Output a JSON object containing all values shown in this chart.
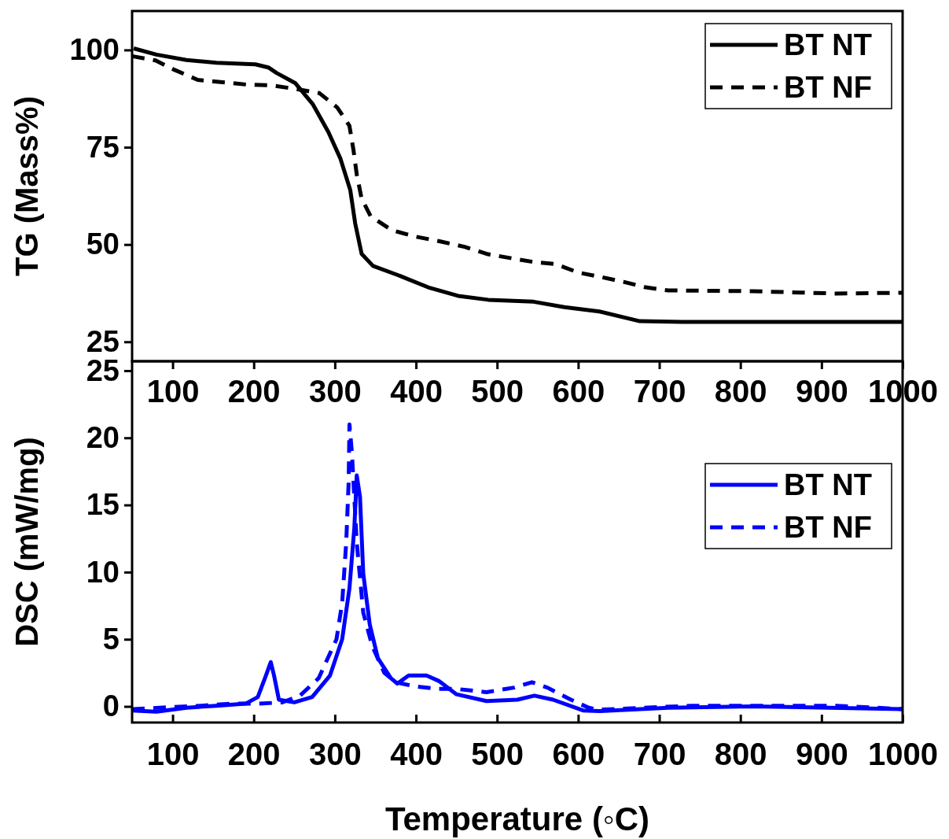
{
  "chart_data": [
    {
      "type": "line",
      "ylabel": "TG (Mass%)",
      "xlim": [
        50,
        1000
      ],
      "ylim": [
        20,
        110
      ],
      "xticks": [
        100,
        200,
        300,
        400,
        500,
        600,
        700,
        800,
        900,
        1000
      ],
      "yticks": [
        25,
        50,
        75,
        100
      ],
      "legend": "top right",
      "grid": false,
      "series": [
        {
          "name": "BT NT",
          "color": "#000000",
          "line_style": "solid",
          "x": [
            52,
            80,
            117,
            154,
            202,
            218,
            228,
            251,
            273,
            292,
            307,
            319,
            325,
            333,
            347,
            377,
            415,
            452,
            489,
            545,
            583,
            626,
            676,
            728,
            1000
          ],
          "values": [
            100.4,
            98.8,
            97.4,
            96.7,
            96.3,
            95.5,
            94.1,
            91.5,
            86,
            78.9,
            72,
            64,
            55.5,
            47.6,
            44.5,
            42.2,
            39,
            36.8,
            35.8,
            35.3,
            33.9,
            32.8,
            30.3,
            30.1,
            30.1
          ]
        },
        {
          "name": "BT NF",
          "color": "#000000",
          "line_style": "dashed",
          "x": [
            50,
            79,
            102,
            131,
            191,
            221,
            251,
            281,
            303,
            318,
            323,
            327,
            333,
            344,
            370,
            400,
            430,
            460,
            489,
            545,
            572,
            600,
            627,
            656,
            683,
            711,
            815,
            918,
            1000
          ],
          "values": [
            98.4,
            97.3,
            94.9,
            92.3,
            91.1,
            90.9,
            90,
            88.9,
            85.2,
            80.5,
            74.2,
            68,
            61.8,
            57.3,
            53.7,
            52,
            50.8,
            49.4,
            47.5,
            45.5,
            45,
            42.8,
            41.7,
            40.4,
            39,
            38.2,
            38,
            37.4,
            37.6
          ]
        }
      ]
    },
    {
      "type": "line",
      "ylabel": "DSC (mW/mg)",
      "xlabel": "Temperature (◦C)",
      "xlim": [
        50,
        1000
      ],
      "ylim": [
        -1.2,
        25.7
      ],
      "xticks": [
        100,
        200,
        300,
        400,
        500,
        600,
        700,
        800,
        900,
        1000
      ],
      "yticks": [
        0,
        5,
        10,
        15,
        20,
        25
      ],
      "legend": "top right",
      "grid": false,
      "series": [
        {
          "name": "BT NT",
          "color": "#0000ff",
          "line_style": "solid",
          "x": [
            50,
            80,
            117,
            154,
            190,
            205,
            215,
            221,
            225,
            231,
            250,
            272,
            294,
            309,
            318,
            324,
            327,
            331,
            335,
            343,
            353,
            369,
            377,
            391,
            413,
            428,
            450,
            487,
            525,
            546,
            569,
            606,
            627,
            711,
            815,
            1000
          ],
          "values": [
            -0.3,
            -0.4,
            -0.1,
            0.05,
            0.2,
            0.7,
            2.3,
            3.3,
            2.3,
            0.5,
            0.3,
            0.7,
            2.3,
            5,
            8.8,
            13.3,
            17.2,
            15.6,
            9.9,
            6.1,
            3.6,
            2.1,
            1.7,
            2.3,
            2.3,
            1.9,
            0.9,
            0.4,
            0.5,
            0.8,
            0.5,
            -0.3,
            -0.35,
            -0.1,
            0,
            -0.2
          ]
        },
        {
          "name": "BT NF",
          "color": "#0000ff",
          "line_style": "dashed",
          "x": [
            50,
            135,
            172,
            205,
            235,
            257,
            280,
            302,
            309,
            314,
            317,
            318,
            321,
            327,
            335,
            346,
            361,
            375,
            398,
            428,
            450,
            487,
            521,
            543,
            562,
            591,
            613,
            625,
            739,
            828,
            918,
            1000
          ],
          "values": [
            -0.2,
            0.05,
            0.2,
            0.2,
            0.3,
            0.8,
            2.1,
            5,
            7.7,
            12.2,
            16.7,
            21,
            18.9,
            12.2,
            7,
            4.5,
            2.5,
            1.8,
            1.5,
            1.3,
            1.3,
            1.06,
            1.4,
            1.8,
            1.4,
            0.5,
            -0.1,
            -0.25,
            0.05,
            0.05,
            0.05,
            -0.2
          ]
        }
      ]
    }
  ]
}
